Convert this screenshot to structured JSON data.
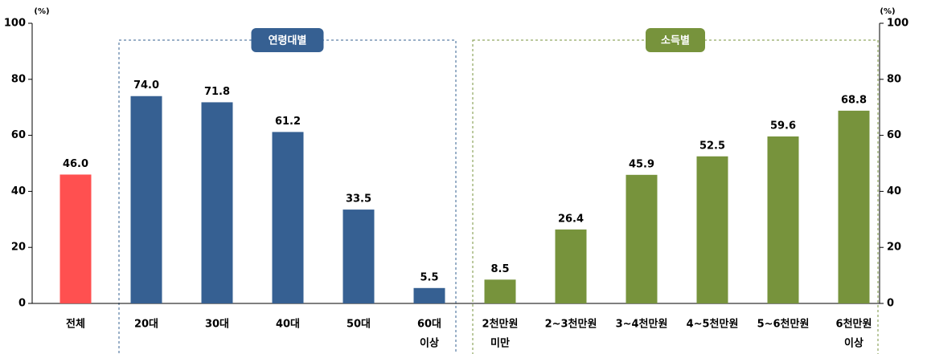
{
  "chart_data": {
    "type": "bar",
    "y_label": "(%)",
    "y2_label": "(%)",
    "categories": [
      [
        "전체"
      ],
      [
        "20대"
      ],
      [
        "30대"
      ],
      [
        "40대"
      ],
      [
        "50대"
      ],
      [
        "60대",
        "이상"
      ],
      [
        "2천만원",
        "미만"
      ],
      [
        "2~3천만원"
      ],
      [
        "3~4천만원"
      ],
      [
        "4~5천만원"
      ],
      [
        "5~6천만원"
      ],
      [
        "6천만원",
        "이상"
      ]
    ],
    "values": [
      46.0,
      74.0,
      71.8,
      61.2,
      33.5,
      5.5,
      8.5,
      26.4,
      45.9,
      52.5,
      59.6,
      68.8
    ],
    "value_labels": [
      "46.0",
      "74.0",
      "71.8",
      "61.2",
      "33.5",
      "5.5",
      "8.5",
      "26.4",
      "45.9",
      "52.5",
      "59.6",
      "68.8"
    ],
    "colors": [
      "#ff5050",
      "#366092",
      "#366092",
      "#366092",
      "#366092",
      "#366092",
      "#77933c",
      "#77933c",
      "#77933c",
      "#77933c",
      "#77933c",
      "#77933c"
    ],
    "groups": [
      {
        "label": "연령대별",
        "color": "#366092"
      },
      {
        "label": "소득별",
        "color": "#77933c"
      }
    ],
    "ylim": [
      0,
      100
    ],
    "yticks": [
      0,
      20,
      40,
      60,
      80,
      100
    ],
    "y2lim": [
      0,
      100
    ],
    "y2ticks": [
      0,
      20,
      40,
      60,
      80,
      100
    ]
  }
}
